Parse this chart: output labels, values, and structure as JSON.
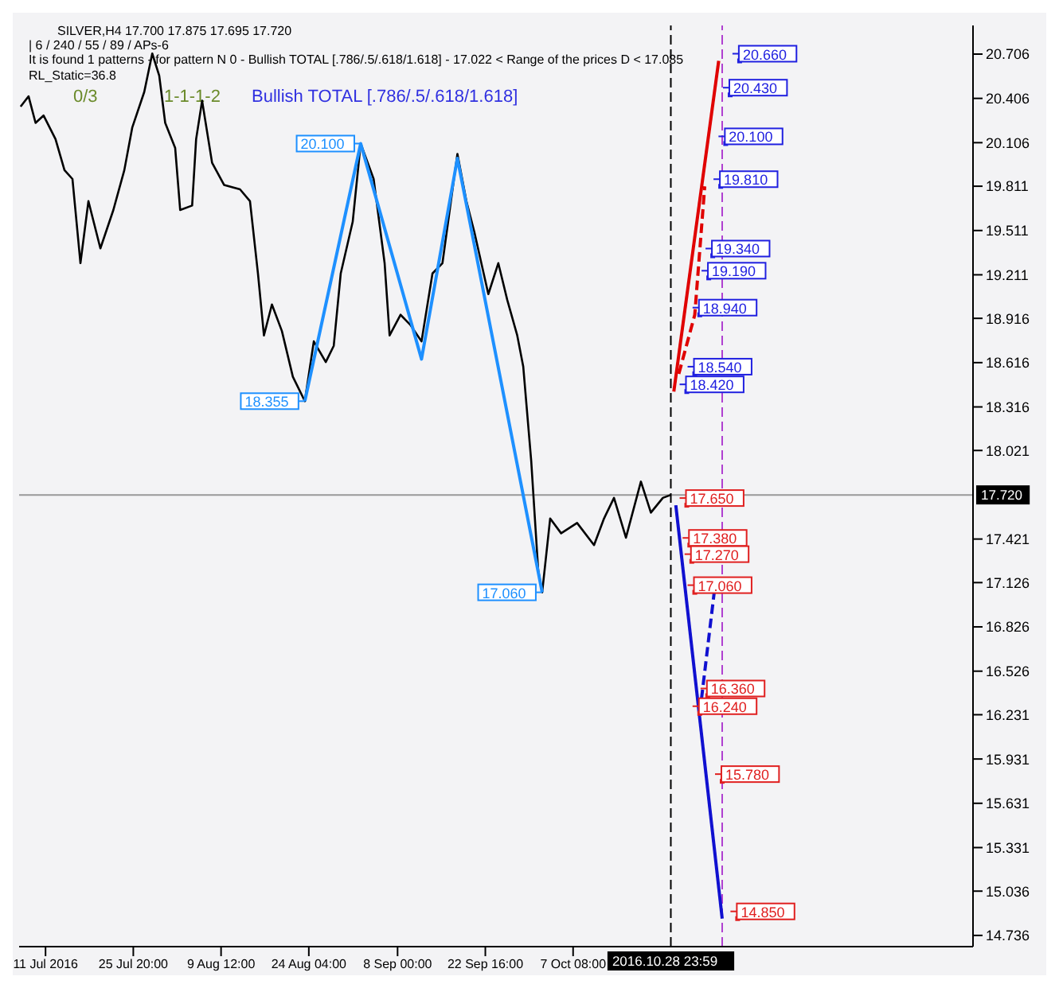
{
  "chart_data": {
    "type": "line",
    "title": "SILVER,H4  17.700 17.875 17.695 17.720",
    "subtitle": "| 6 / 240 / 55 / 89 / APs-6",
    "annotations": [
      "It is found 1 patterns - for pattern N 0 - Bullish TOTAL [.786/.5/.618/1.618] - 17.022 < Range of the prices D < 17.085",
      "RL_Static=36.8",
      "Bullish TOTAL [.786/.5/.618/1.618]",
      "0/3",
      "1-1-1-2"
    ],
    "series": [
      {
        "color": "#000000",
        "x": [
          "2016-07-07T00:00",
          "2016-07-08T08:00",
          "2016-07-09T12:00",
          "2016-07-10T20:00",
          "2016-07-12T20:00",
          "2016-07-14T08:00",
          "2016-07-15T16:00",
          "2016-07-17T00:00",
          "2016-07-18T08:00",
          "2016-07-20T08:00",
          "2016-07-22T12:00",
          "2016-07-24T08:00",
          "2016-07-25T16:00",
          "2016-07-27T16:00",
          "2016-07-29T00:00",
          "2016-07-30T04:00",
          "2016-07-31T04:00",
          "2016-08-01T20:00",
          "2016-08-02T16:00",
          "2016-08-04T16:00",
          "2016-08-05T08:00",
          "2016-08-06T08:00",
          "2016-08-08T00:00",
          "2016-08-10T00:00",
          "2016-08-12T16:00",
          "2016-08-14T08:00",
          "2016-08-15T16:00",
          "2016-08-16T16:00",
          "2016-08-18T00:00",
          "2016-08-19T16:00",
          "2016-08-21T12:00",
          "2016-08-23T12:00",
          "2016-08-25T00:00",
          "2016-08-27T00:00",
          "2016-08-28T08:00",
          "2016-08-29T12:00",
          "2016-08-31T12:00",
          "2016-09-01T20:00",
          "2016-09-04T00:00",
          "2016-09-05T20:00",
          "2016-09-06T16:00",
          "2016-09-08T12:00",
          "2016-09-10T04:00",
          "2016-09-12T00:00",
          "2016-09-13T20:00",
          "2016-09-15T12:00",
          "2016-09-18T00:00",
          "2016-09-19T12:00",
          "2016-09-20T20:00",
          "2016-09-23T04:00",
          "2016-09-24T20:00",
          "2016-09-26T08:00",
          "2016-09-28T00:00",
          "2016-09-29T00:00",
          "2016-09-30T08:00",
          "2016-10-01T12:00",
          "2016-10-02T04:00",
          "2016-10-03T12:00",
          "2016-10-05T08:00",
          "2016-10-08T00:00",
          "2016-10-10T20:00",
          "2016-10-12T12:00",
          "2016-10-14T04:00",
          "2016-10-16T04:00",
          "2016-10-18T16:00",
          "2016-10-20T08:00",
          "2016-10-22T08:00",
          "2016-10-23T16:00"
        ],
        "values": [
          20.35,
          20.42,
          20.24,
          20.29,
          20.13,
          19.92,
          19.86,
          19.29,
          19.71,
          19.39,
          19.65,
          19.92,
          20.21,
          20.45,
          20.71,
          20.56,
          20.24,
          20.07,
          19.65,
          19.68,
          20.13,
          20.39,
          19.97,
          19.82,
          19.79,
          19.71,
          19.22,
          18.8,
          19.01,
          18.83,
          18.52,
          18.355,
          18.76,
          18.62,
          18.73,
          19.22,
          19.57,
          20.1,
          19.86,
          19.29,
          18.8,
          18.94,
          18.87,
          18.76,
          19.22,
          19.29,
          20.03,
          19.71,
          19.5,
          19.08,
          19.29,
          19.04,
          18.8,
          18.59,
          17.95,
          17.21,
          17.06,
          17.56,
          17.46,
          17.53,
          17.38,
          17.56,
          17.7,
          17.43,
          17.81,
          17.6,
          17.7,
          17.72
        ]
      },
      {
        "color": "#1e90ff",
        "x": [
          "2016-08-23T12:00",
          "2016-09-01T20:00",
          "2016-09-12T00:00",
          "2016-09-18T00:00",
          "2016-10-02T04:00"
        ],
        "values": [
          18.355,
          20.1,
          18.64,
          20.0,
          17.06
        ],
        "value_labels": [
          "18.355",
          "20.100",
          null,
          null,
          "17.060"
        ]
      },
      {
        "color": "#e00000",
        "x": [
          "2016-10-24T04:00",
          "2016-10-31T16:00"
        ],
        "values": [
          18.42,
          20.66
        ]
      },
      {
        "color": "#e00000",
        "line_style": "dashed",
        "x": [
          "2016-10-25T00:00",
          "2016-10-27T16:00",
          "2016-10-29T08:00"
        ],
        "values": [
          18.54,
          18.94,
          19.81
        ]
      },
      {
        "color": "#1010d0",
        "x": [
          "2016-10-24T12:00",
          "2016-11-01T06:00"
        ],
        "values": [
          17.65,
          14.85
        ]
      },
      {
        "color": "#1010d0",
        "line_style": "dashed",
        "x": [
          "2016-10-28T12:00",
          "2016-10-30T22:00"
        ],
        "values": [
          16.24,
          17.06
        ]
      },
      {
        "type": "scatter",
        "marker": "square",
        "color": "#2020e0",
        "x": [
          "2016-11-04T04:00",
          "2016-11-02T14:00",
          "2016-11-01T20:00",
          "2016-11-01T00:00",
          "2016-10-30T16:00",
          "2016-10-30T00:00",
          "2016-10-28T12:00",
          "2016-10-27T16:00",
          "2016-10-26T08:00"
        ],
        "values": [
          20.66,
          20.43,
          20.1,
          19.81,
          19.34,
          19.19,
          18.94,
          18.54,
          18.42
        ],
        "value_labels": [
          "20.660",
          "20.430",
          "20.100",
          "19.810",
          "19.340",
          "19.190",
          "18.940",
          "18.540",
          "18.420"
        ]
      },
      {
        "type": "scatter",
        "marker": "square",
        "color": "#e02020",
        "x": [
          "2016-10-26T08:00",
          "2016-10-26T20:00",
          "2016-10-27T04:00",
          "2016-10-27T16:00",
          "2016-10-29T20:00",
          "2016-10-28T12:00",
          "2016-11-01T06:00",
          "2016-11-03T20:00"
        ],
        "values": [
          17.65,
          17.38,
          17.27,
          17.06,
          16.36,
          16.24,
          15.78,
          14.85
        ],
        "value_labels": [
          "17.650",
          "17.380",
          "17.270",
          "17.060",
          "16.360",
          "16.240",
          "15.780",
          "14.850"
        ]
      }
    ],
    "ref_lines": [
      {
        "axis": "y",
        "value": 17.72,
        "label": "17.720",
        "color": "#999999"
      },
      {
        "axis": "x",
        "value": "2016-10-23T16:00",
        "label": "2016.10.28 23:59",
        "color": "#000000",
        "line_style": "dashed"
      },
      {
        "axis": "x",
        "value": "2016-11-01T06:00",
        "color": "#b040d0",
        "line_style": "dashed"
      }
    ],
    "xlim": [
      "2016-07-06T18:00",
      "2016-12-13T04:00"
    ],
    "xticks": [
      {
        "value": "2016-07-11T04:00",
        "label": "11 Jul 2016"
      },
      {
        "value": "2016-07-25T20:00",
        "label": "25 Jul 20:00"
      },
      {
        "value": "2016-08-09T12:00",
        "label": "9 Aug 12:00"
      },
      {
        "value": "2016-08-24T04:00",
        "label": "24 Aug 04:00"
      },
      {
        "value": "2016-09-08T00:00",
        "label": "8 Sep 00:00"
      },
      {
        "value": "2016-09-22T16:00",
        "label": "22 Sep 16:00"
      },
      {
        "value": "2016-10-07T08:00",
        "label": "7 Oct 08:00"
      }
    ],
    "ylim": [
      14.66,
      20.9
    ],
    "yticks": [
      14.736,
      15.036,
      15.331,
      15.631,
      15.931,
      16.231,
      16.526,
      16.826,
      17.126,
      17.421,
      18.021,
      18.316,
      18.616,
      18.916,
      19.211,
      19.511,
      19.811,
      20.106,
      20.406,
      20.706
    ],
    "grid": false,
    "legend": false,
    "marker": "none"
  }
}
